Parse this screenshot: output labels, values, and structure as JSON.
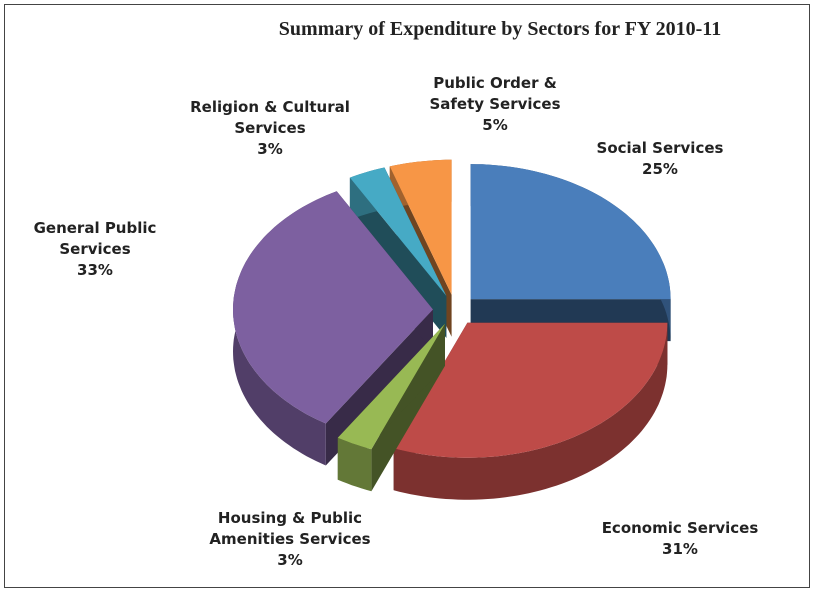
{
  "chart_data": {
    "type": "pie",
    "title": "Summary of Expenditure by Sectors for FY 2010-11",
    "categories": [
      "Social Services",
      "Economic Services",
      "Housing & Public Amenities Services",
      "General Public Services",
      "Religion & Cultural Services",
      "Public Order & Safety Services"
    ],
    "values": [
      25,
      31,
      3,
      33,
      3,
      5
    ],
    "value_labels": [
      "25%",
      "31%",
      "3%",
      "33%",
      "3%",
      "5%"
    ],
    "colors": [
      "#4a7ebb",
      "#be4b48",
      "#98b954",
      "#7d60a0",
      "#46aac5",
      "#f79646"
    ]
  }
}
